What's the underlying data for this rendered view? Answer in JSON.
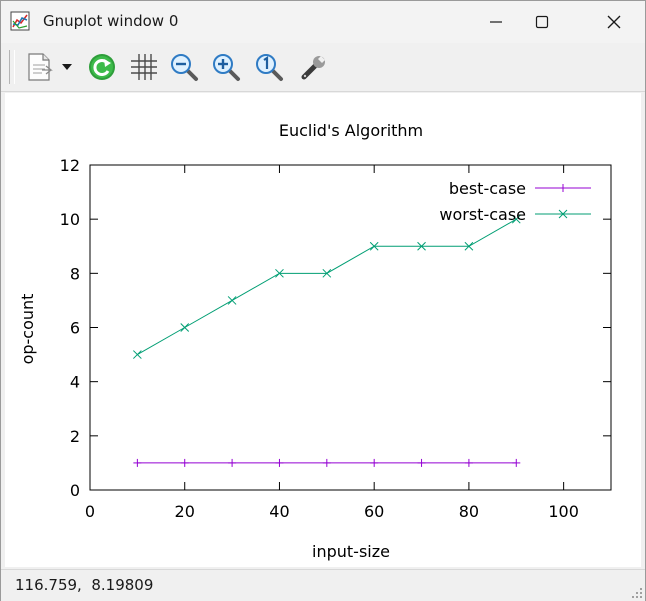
{
  "window": {
    "title": "Gnuplot window 0",
    "controls": {
      "minimize": "minimize-icon",
      "maximize": "maximize-icon",
      "close": "close-icon"
    }
  },
  "toolbar": {
    "buttons": [
      {
        "name": "copy-to-clipboard",
        "icon": "copy-icon"
      },
      {
        "name": "print-options-dropdown",
        "icon": "chevron-down-icon"
      },
      {
        "name": "replot",
        "icon": "refresh-icon"
      },
      {
        "name": "toggle-grid",
        "icon": "grid-icon"
      },
      {
        "name": "zoom-out",
        "icon": "zoom-out-icon"
      },
      {
        "name": "zoom-in",
        "icon": "zoom-in-icon"
      },
      {
        "name": "zoom-reset",
        "icon": "zoom-reset-icon"
      },
      {
        "name": "options",
        "icon": "wrench-icon"
      }
    ]
  },
  "status": {
    "coordinates": "116.759,  8.19809"
  },
  "colors": {
    "best": "#9400d3",
    "worst": "#009e73",
    "axis": "#000000"
  },
  "chart_data": {
    "type": "line",
    "title": "Euclid's Algorithm",
    "xlabel": "input-size",
    "ylabel": "op-count",
    "xlim": [
      0,
      110
    ],
    "ylim": [
      0,
      12
    ],
    "xticks": [
      0,
      20,
      40,
      60,
      80,
      100
    ],
    "yticks": [
      0,
      2,
      4,
      6,
      8,
      10,
      12
    ],
    "grid": false,
    "legend_position": "top-right",
    "series": [
      {
        "name": "best-case",
        "marker": "+",
        "x": [
          10,
          20,
          30,
          40,
          50,
          60,
          70,
          80,
          90
        ],
        "y": [
          1,
          1,
          1,
          1,
          1,
          1,
          1,
          1,
          1
        ]
      },
      {
        "name": "worst-case",
        "marker": "x",
        "x": [
          10,
          20,
          30,
          40,
          50,
          60,
          70,
          80,
          90
        ],
        "y": [
          5,
          6,
          7,
          8,
          8,
          9,
          9,
          9,
          10
        ]
      }
    ]
  }
}
